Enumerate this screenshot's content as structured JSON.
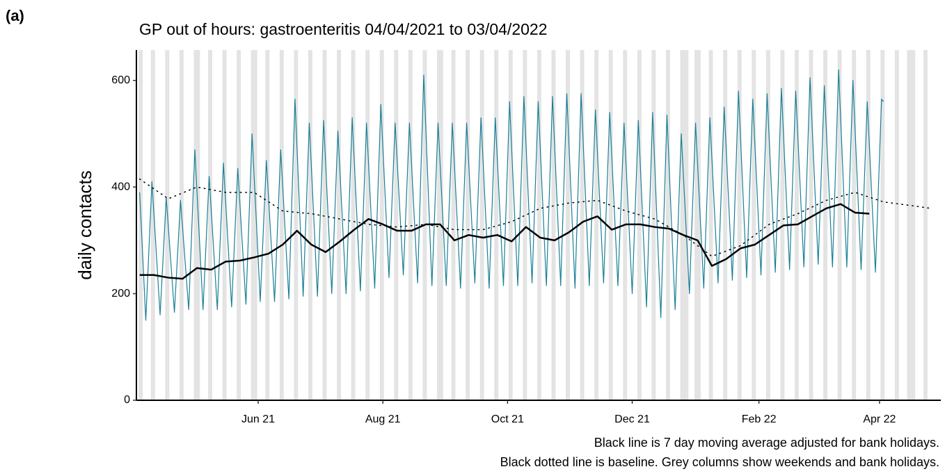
{
  "panel_label": "(a)",
  "chart_data": {
    "type": "line",
    "title": "GP out of hours: gastroenteritis 04/04/2021 to 03/04/2022",
    "ylabel": "daily contacts",
    "notes": [
      "Black line is 7 day moving average adjusted for bank holidays.",
      "Black dotted line is baseline. Grey columns show weekends and bank holidays."
    ],
    "xlim": [
      -1.6,
      392
    ],
    "ylim": [
      0,
      657
    ],
    "xticks": [
      {
        "value": 58,
        "label": "Jun 21"
      },
      {
        "value": 119,
        "label": "Aug 21"
      },
      {
        "value": 180,
        "label": "Oct 21"
      },
      {
        "value": 241,
        "label": "Dec 21"
      },
      {
        "value": 303,
        "label": "Feb 22"
      },
      {
        "value": 362,
        "label": "Apr 22"
      }
    ],
    "yticks": [
      0,
      200,
      400,
      600
    ],
    "shaded_color": "#e3e3e3",
    "shaded_days": [
      0,
      1,
      6,
      7,
      13,
      14,
      20,
      21,
      27,
      28,
      29,
      34,
      35,
      41,
      42,
      48,
      49,
      55,
      56,
      57,
      62,
      63,
      69,
      70,
      76,
      77,
      83,
      84,
      90,
      91,
      97,
      98,
      104,
      105,
      111,
      112,
      118,
      119,
      125,
      126,
      132,
      133,
      139,
      140,
      146,
      147,
      148,
      153,
      154,
      160,
      161,
      167,
      168,
      174,
      175,
      181,
      182,
      188,
      189,
      195,
      196,
      202,
      203,
      209,
      210,
      216,
      217,
      223,
      224,
      230,
      231,
      237,
      238,
      244,
      245,
      251,
      252,
      258,
      259,
      265,
      266,
      267,
      268,
      272,
      273,
      274,
      279,
      280,
      286,
      287,
      293,
      294,
      300,
      301,
      307,
      308,
      314,
      315,
      321,
      322,
      328,
      329,
      335,
      336,
      342,
      343,
      349,
      350,
      356,
      357,
      363,
      364,
      370,
      371,
      376,
      377,
      378,
      379,
      384,
      385
    ],
    "series": [
      {
        "color": "#1a7f96",
        "width": 1.2,
        "dotted": false,
        "x": [
          0,
          3,
          6,
          10,
          13,
          17,
          20,
          24,
          27,
          31,
          34,
          38,
          41,
          45,
          48,
          52,
          55,
          59,
          62,
          66,
          69,
          73,
          76,
          80,
          83,
          87,
          90,
          94,
          97,
          101,
          104,
          108,
          111,
          115,
          118,
          122,
          125,
          129,
          132,
          136,
          139,
          143,
          146,
          150,
          153,
          157,
          160,
          164,
          167,
          171,
          174,
          178,
          181,
          185,
          188,
          192,
          195,
          199,
          202,
          206,
          209,
          213,
          216,
          220,
          223,
          227,
          230,
          234,
          237,
          241,
          244,
          248,
          251,
          255,
          258,
          262,
          265,
          269,
          272,
          276,
          279,
          283,
          286,
          290,
          293,
          297,
          300,
          304,
          307,
          311,
          314,
          318,
          321,
          325,
          328,
          332,
          335,
          339,
          342,
          346,
          349,
          353,
          356,
          360,
          363,
          364
        ],
        "values": [
          390,
          150,
          410,
          160,
          380,
          165,
          375,
          170,
          470,
          170,
          420,
          170,
          445,
          175,
          435,
          180,
          500,
          185,
          450,
          185,
          470,
          190,
          565,
          195,
          520,
          195,
          525,
          200,
          505,
          200,
          530,
          205,
          520,
          210,
          555,
          230,
          520,
          235,
          520,
          220,
          610,
          215,
          520,
          215,
          520,
          210,
          520,
          220,
          530,
          210,
          530,
          215,
          560,
          215,
          570,
          220,
          560,
          215,
          570,
          215,
          575,
          210,
          575,
          215,
          545,
          220,
          540,
          215,
          520,
          200,
          525,
          175,
          540,
          155,
          535,
          170,
          500,
          200,
          520,
          210,
          530,
          220,
          550,
          225,
          580,
          230,
          565,
          235,
          575,
          240,
          585,
          245,
          580,
          250,
          605,
          255,
          590,
          250,
          620,
          250,
          600,
          245,
          560,
          240,
          565,
          560
        ]
      },
      {
        "color": "#000000",
        "width": 1.5,
        "dotted": true,
        "x": [
          0,
          14,
          28,
          42,
          56,
          70,
          84,
          98,
          112,
          126,
          140,
          154,
          168,
          182,
          196,
          210,
          224,
          238,
          252,
          266,
          280,
          294,
          308,
          322,
          336,
          350,
          364,
          378,
          387
        ],
        "values": [
          415,
          378,
          400,
          390,
          390,
          355,
          350,
          340,
          330,
          325,
          330,
          320,
          320,
          335,
          360,
          370,
          375,
          355,
          340,
          310,
          270,
          290,
          330,
          350,
          375,
          390,
          372,
          365,
          360
        ]
      },
      {
        "color": "#000000",
        "width": 2.5,
        "dotted": false,
        "x": [
          0,
          7,
          14,
          21,
          28,
          35,
          42,
          49,
          56,
          63,
          70,
          77,
          84,
          91,
          98,
          105,
          112,
          119,
          126,
          133,
          140,
          147,
          154,
          161,
          168,
          175,
          182,
          189,
          196,
          203,
          210,
          217,
          224,
          231,
          238,
          245,
          252,
          259,
          266,
          273,
          280,
          287,
          294,
          301,
          308,
          315,
          322,
          329,
          336,
          343,
          350,
          357
        ],
        "values": [
          235,
          235,
          230,
          228,
          248,
          245,
          260,
          262,
          268,
          275,
          292,
          318,
          292,
          278,
          298,
          320,
          340,
          330,
          318,
          318,
          330,
          330,
          300,
          310,
          305,
          310,
          298,
          325,
          305,
          300,
          315,
          335,
          345,
          320,
          330,
          330,
          325,
          322,
          310,
          300,
          252,
          265,
          285,
          292,
          310,
          328,
          330,
          345,
          360,
          368,
          352,
          350
        ]
      }
    ]
  }
}
